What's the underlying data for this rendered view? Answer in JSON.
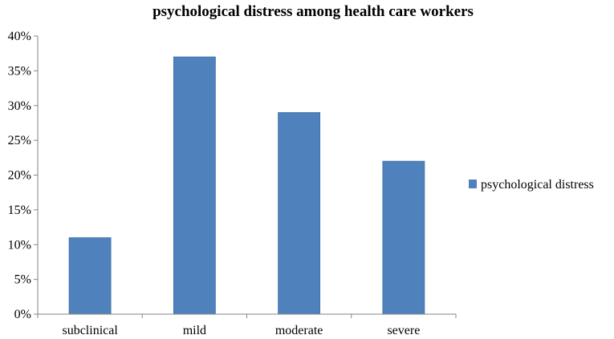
{
  "chart_data": {
    "type": "bar",
    "title": "psychological distress among health care workers",
    "xlabel": "",
    "ylabel": "",
    "categories": [
      "subclinical",
      "mild",
      "moderate",
      "severe"
    ],
    "series": [
      {
        "name": "psychological distress",
        "values": [
          11,
          37,
          29,
          22
        ],
        "color": "#4F81BD"
      }
    ],
    "ylim": [
      0,
      40
    ],
    "y_ticks": [
      "0%",
      "5%",
      "10%",
      "15%",
      "20%",
      "25%",
      "30%",
      "35%",
      "40%"
    ],
    "y_tick_values": [
      0,
      5,
      10,
      15,
      20,
      25,
      30,
      35,
      40
    ],
    "grid": false,
    "legend_position": "right"
  }
}
